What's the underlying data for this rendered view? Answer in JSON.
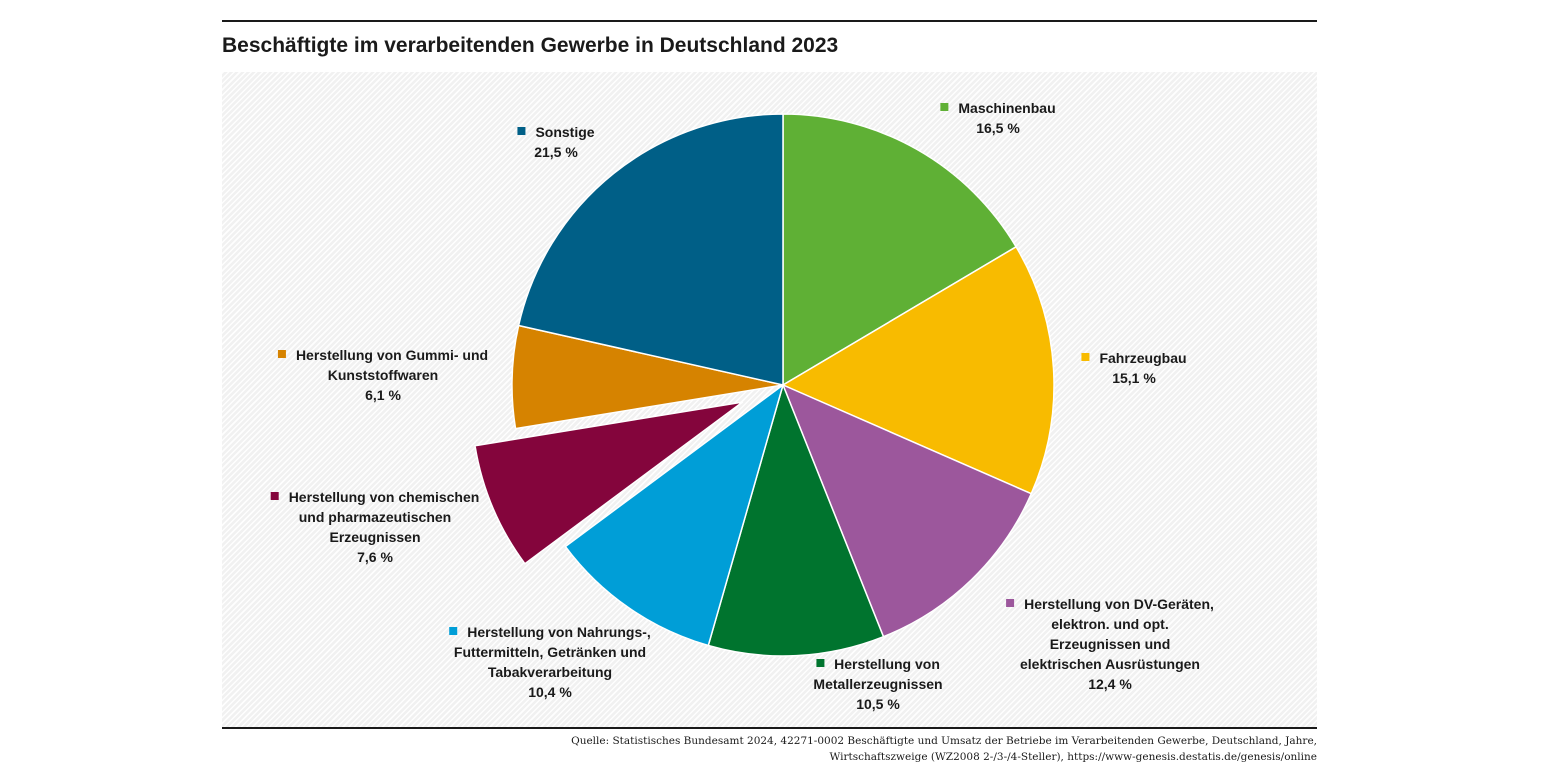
{
  "title": "Beschäftigte im verarbeitenden Gewerbe in Deutschland 2023",
  "source": {
    "line1": "Quelle: Statistisches Bundesamt 2024, 42271-0002 Beschäftigte und Umsatz der Betriebe im Verarbeitenden Gewerbe, Deutschland, Jahre,",
    "line2": "Wirtschaftszweige (WZ2008 2-/3-/4-Steller), https://www-genesis.destatis.de/genesis/online"
  },
  "chart_data": {
    "type": "pie",
    "title": "Beschäftigte im verarbeitenden Gewerbe in Deutschland 2023",
    "unit": "%",
    "start_angle_deg": 0,
    "direction": "clockwise",
    "exploded": [
      "Herstellung von chemischen und pharmazeutischen Erzeugnissen"
    ],
    "slices": [
      {
        "name": "Maschinenbau",
        "value": 16.5,
        "value_label": "16,5 %",
        "color": "#5fb035",
        "label_lines": [
          "Maschinenbau"
        ]
      },
      {
        "name": "Fahrzeugbau",
        "value": 15.1,
        "value_label": "15,1 %",
        "color": "#f8bb00",
        "label_lines": [
          "Fahrzeugbau"
        ]
      },
      {
        "name": "Herstellung von DV-Geräten, elektron. und opt. Erzeugnissen und elektrischen Ausrüstungen",
        "value": 12.4,
        "value_label": "12,4 %",
        "color": "#9c579c",
        "label_lines": [
          "Herstellung von DV-Geräten,",
          "elektron. und opt.",
          "Erzeugnissen und",
          "elektrischen Ausrüstungen"
        ]
      },
      {
        "name": "Herstellung von Metallerzeugnissen",
        "value": 10.5,
        "value_label": "10,5 %",
        "color": "#00742e",
        "label_lines": [
          "Herstellung von",
          "Metallerzeugnissen"
        ]
      },
      {
        "name": "Herstellung von Nahrungs-, Futtermitteln, Getränken und Tabakverarbeitung",
        "value": 10.4,
        "value_label": "10,4 %",
        "color": "#009ed7",
        "label_lines": [
          "Herstellung von Nahrungs-,",
          "Futtermitteln, Getränken und",
          "Tabakverarbeitung"
        ]
      },
      {
        "name": "Herstellung von chemischen und pharmazeutischen Erzeugnissen",
        "value": 7.6,
        "value_label": "7,6 %",
        "color": "#84053c",
        "label_lines": [
          "Herstellung von chemischen",
          "und pharmazeutischen",
          "Erzeugnissen"
        ]
      },
      {
        "name": "Herstellung von Gummi- und Kunststoffwaren",
        "value": 6.1,
        "value_label": "6,1 %",
        "color": "#d68300",
        "label_lines": [
          "Herstellung von Gummi- und",
          "Kunststoffwaren"
        ]
      },
      {
        "name": "Sonstige",
        "value": 21.5,
        "value_label": "21,5 %",
        "color": "#005f87",
        "label_lines": [
          "Sonstige"
        ]
      }
    ]
  }
}
